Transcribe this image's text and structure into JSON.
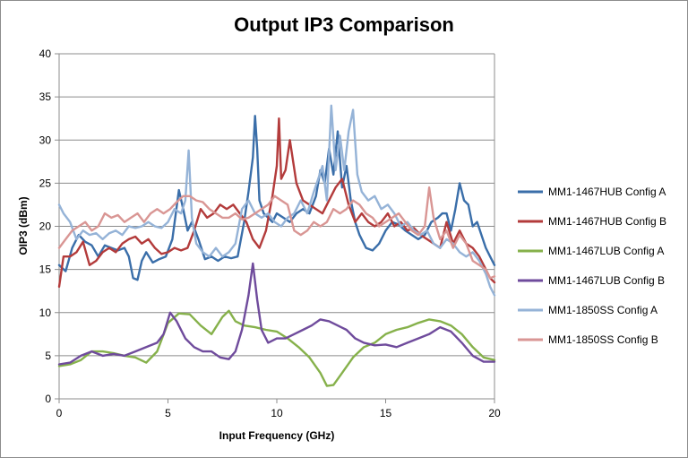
{
  "chart_data": {
    "type": "line",
    "title": "Output IP3 Comparison",
    "xlabel": "Input Frequency (GHz)",
    "ylabel": "OIP3  (dBm)",
    "xlim": [
      0,
      20
    ],
    "ylim": [
      0,
      40
    ],
    "xticks": [
      0,
      5,
      10,
      15,
      20
    ],
    "yticks": [
      0,
      5,
      10,
      15,
      20,
      25,
      30,
      35,
      40
    ],
    "grid": "horizontal",
    "legend": "right",
    "series": [
      {
        "name": "MM1-1467HUB Config A",
        "color": "#3a6ea9",
        "x": [
          0,
          0.3,
          0.6,
          0.9,
          1.2,
          1.5,
          1.8,
          2.1,
          2.4,
          2.7,
          3.0,
          3.2,
          3.4,
          3.6,
          3.8,
          4.0,
          4.3,
          4.6,
          4.9,
          5.2,
          5.5,
          5.7,
          5.9,
          6.1,
          6.4,
          6.7,
          7.0,
          7.3,
          7.6,
          7.9,
          8.2,
          8.5,
          8.7,
          8.9,
          9.0,
          9.1,
          9.2,
          9.4,
          9.6,
          9.8,
          10.0,
          10.3,
          10.6,
          10.9,
          11.2,
          11.5,
          11.8,
          12.0,
          12.2,
          12.4,
          12.6,
          12.8,
          13.0,
          13.2,
          13.4,
          13.6,
          13.8,
          14.1,
          14.4,
          14.7,
          15.0,
          15.3,
          15.6,
          15.9,
          16.2,
          16.5,
          16.8,
          17.1,
          17.4,
          17.6,
          17.8,
          18.0,
          18.2,
          18.4,
          18.6,
          18.8,
          19.0,
          19.2,
          19.4,
          19.6,
          19.8,
          20.0
        ],
        "values": [
          15.5,
          14.8,
          17.5,
          19.0,
          18.2,
          17.8,
          16.5,
          17.8,
          17.5,
          17.2,
          17.5,
          16.5,
          14.0,
          13.8,
          16.0,
          17.0,
          15.8,
          16.2,
          16.5,
          18.5,
          24.2,
          22.0,
          19.5,
          20.5,
          18.5,
          16.2,
          16.5,
          16.0,
          16.5,
          16.3,
          16.5,
          20.5,
          24.0,
          28.0,
          32.8,
          29.0,
          23.0,
          21.5,
          21.0,
          20.5,
          21.5,
          21.0,
          20.5,
          21.5,
          22.0,
          21.5,
          23.5,
          26.5,
          25.0,
          29.0,
          26.0,
          31.0,
          24.5,
          27.0,
          23.0,
          20.5,
          19.0,
          17.5,
          17.2,
          18.0,
          19.5,
          20.5,
          20.2,
          19.5,
          19.0,
          18.5,
          19.0,
          20.5,
          21.0,
          21.5,
          21.5,
          19.5,
          22.0,
          25.0,
          23.0,
          22.5,
          20.0,
          20.5,
          19.0,
          17.5,
          16.5,
          15.5
        ]
      },
      {
        "name": "MM1-1467HUB Config B",
        "color": "#b33b3b",
        "x": [
          0,
          0.2,
          0.5,
          0.8,
          1.1,
          1.4,
          1.7,
          2.0,
          2.3,
          2.6,
          2.9,
          3.2,
          3.5,
          3.8,
          4.1,
          4.4,
          4.7,
          5.0,
          5.3,
          5.6,
          5.9,
          6.2,
          6.5,
          6.8,
          7.1,
          7.4,
          7.7,
          8.0,
          8.3,
          8.6,
          8.9,
          9.2,
          9.5,
          9.8,
          10.0,
          10.1,
          10.2,
          10.4,
          10.6,
          10.9,
          11.2,
          11.5,
          11.8,
          12.1,
          12.4,
          12.7,
          13.0,
          13.3,
          13.6,
          13.9,
          14.2,
          14.5,
          14.8,
          15.1,
          15.4,
          15.7,
          16.0,
          16.3,
          16.6,
          16.9,
          17.2,
          17.5,
          17.8,
          18.1,
          18.4,
          18.7,
          19.0,
          19.3,
          19.6,
          19.8,
          20.0
        ],
        "values": [
          13.0,
          16.5,
          16.5,
          17.0,
          18.2,
          15.5,
          16.0,
          17.0,
          17.5,
          17.0,
          18.0,
          18.5,
          18.8,
          18.0,
          18.5,
          17.5,
          16.8,
          17.0,
          17.5,
          17.2,
          17.5,
          19.5,
          22.0,
          21.0,
          21.5,
          22.5,
          22.0,
          22.5,
          21.5,
          20.5,
          18.5,
          17.5,
          19.5,
          23.5,
          27.0,
          32.5,
          25.5,
          26.5,
          30.0,
          25.0,
          23.0,
          22.5,
          22.0,
          21.5,
          23.0,
          24.5,
          25.5,
          22.5,
          20.5,
          21.5,
          20.5,
          20.0,
          20.5,
          21.5,
          20.0,
          20.5,
          19.5,
          19.8,
          19.0,
          18.5,
          18.0,
          17.5,
          20.5,
          18.0,
          19.5,
          18.0,
          17.5,
          16.5,
          15.0,
          14.0,
          13.5
        ]
      },
      {
        "name": "MM1-1467LUB Config A",
        "color": "#86b14b",
        "x": [
          0,
          0.5,
          1.0,
          1.5,
          2.0,
          2.5,
          3.0,
          3.5,
          4.0,
          4.5,
          5.0,
          5.5,
          6.0,
          6.5,
          7.0,
          7.5,
          7.8,
          8.1,
          8.5,
          9.0,
          9.5,
          10.0,
          10.5,
          11.0,
          11.5,
          12.0,
          12.3,
          12.6,
          13.0,
          13.5,
          14.0,
          14.5,
          15.0,
          15.5,
          16.0,
          16.5,
          17.0,
          17.5,
          18.0,
          18.5,
          19.0,
          19.5,
          20.0
        ],
        "values": [
          3.8,
          4.0,
          4.5,
          5.5,
          5.5,
          5.3,
          5.0,
          4.8,
          4.2,
          5.5,
          8.8,
          9.9,
          9.8,
          8.5,
          7.5,
          9.5,
          10.2,
          9.0,
          8.5,
          8.3,
          8.0,
          7.8,
          7.0,
          6.0,
          4.8,
          3.0,
          1.5,
          1.6,
          3.0,
          4.8,
          6.0,
          6.5,
          7.5,
          8.0,
          8.3,
          8.8,
          9.2,
          9.0,
          8.5,
          7.5,
          6.0,
          4.8,
          4.5
        ]
      },
      {
        "name": "MM1-1467LUB Config B",
        "color": "#6f4b9c",
        "x": [
          0,
          0.5,
          1.0,
          1.5,
          2.0,
          2.5,
          3.0,
          3.5,
          4.0,
          4.5,
          4.8,
          5.1,
          5.4,
          5.8,
          6.2,
          6.6,
          7.0,
          7.4,
          7.8,
          8.1,
          8.4,
          8.7,
          8.9,
          9.1,
          9.3,
          9.6,
          10.0,
          10.4,
          10.8,
          11.2,
          11.6,
          12.0,
          12.4,
          12.8,
          13.2,
          13.6,
          14.0,
          14.5,
          15.0,
          15.5,
          16.0,
          16.5,
          17.0,
          17.5,
          18.0,
          18.5,
          19.0,
          19.5,
          20.0
        ],
        "values": [
          4.0,
          4.2,
          5.0,
          5.5,
          5.0,
          5.2,
          5.0,
          5.5,
          6.0,
          6.5,
          7.5,
          10.0,
          9.0,
          7.0,
          6.0,
          5.5,
          5.5,
          4.8,
          4.6,
          5.5,
          8.0,
          12.0,
          15.7,
          11.5,
          8.0,
          6.5,
          7.0,
          7.0,
          7.5,
          8.0,
          8.5,
          9.2,
          9.0,
          8.5,
          8.0,
          7.0,
          6.5,
          6.2,
          6.3,
          6.0,
          6.5,
          7.0,
          7.5,
          8.3,
          7.8,
          6.5,
          5.0,
          4.3,
          4.3
        ]
      },
      {
        "name": "MM1-1850SS Config A",
        "color": "#95b3d7",
        "x": [
          0,
          0.2,
          0.5,
          0.8,
          1.1,
          1.4,
          1.7,
          2.0,
          2.3,
          2.6,
          2.9,
          3.2,
          3.5,
          3.8,
          4.1,
          4.4,
          4.7,
          5.0,
          5.3,
          5.6,
          5.8,
          5.95,
          6.1,
          6.3,
          6.6,
          6.9,
          7.2,
          7.5,
          7.8,
          8.1,
          8.4,
          8.7,
          9.0,
          9.3,
          9.6,
          9.9,
          10.2,
          10.5,
          10.8,
          11.1,
          11.4,
          11.7,
          11.9,
          12.1,
          12.3,
          12.5,
          12.7,
          12.9,
          13.1,
          13.3,
          13.5,
          13.7,
          13.9,
          14.2,
          14.5,
          14.8,
          15.1,
          15.4,
          15.7,
          16.0,
          16.3,
          16.6,
          16.9,
          17.2,
          17.5,
          17.8,
          18.1,
          18.4,
          18.7,
          19.0,
          19.3,
          19.6,
          19.8,
          20.0
        ],
        "values": [
          22.5,
          21.5,
          20.5,
          18.5,
          19.5,
          19.0,
          19.2,
          18.5,
          19.2,
          19.5,
          19.0,
          20.0,
          19.8,
          20.0,
          20.5,
          20.0,
          19.8,
          20.5,
          22.0,
          21.5,
          23.0,
          28.8,
          21.0,
          18.0,
          17.0,
          16.5,
          17.5,
          16.5,
          17.0,
          18.0,
          22.0,
          23.0,
          21.5,
          21.0,
          21.5,
          20.5,
          20.0,
          21.0,
          21.5,
          23.0,
          21.5,
          24.0,
          25.5,
          27.0,
          23.0,
          34.0,
          26.5,
          30.5,
          26.5,
          31.0,
          33.5,
          26.0,
          24.0,
          23.0,
          23.5,
          22.0,
          22.5,
          21.5,
          20.0,
          20.5,
          19.5,
          19.0,
          19.5,
          18.0,
          17.5,
          18.5,
          18.0,
          17.0,
          16.5,
          17.0,
          16.0,
          14.5,
          13.0,
          12.0
        ]
      },
      {
        "name": "MM1-1850SS Config B",
        "color": "#d99694",
        "x": [
          0,
          0.3,
          0.6,
          0.9,
          1.2,
          1.5,
          1.8,
          2.1,
          2.4,
          2.7,
          3.0,
          3.3,
          3.6,
          3.9,
          4.2,
          4.5,
          4.8,
          5.1,
          5.4,
          5.7,
          6.0,
          6.3,
          6.6,
          6.9,
          7.2,
          7.5,
          7.8,
          8.1,
          8.4,
          8.7,
          9.0,
          9.3,
          9.6,
          9.9,
          10.2,
          10.5,
          10.8,
          11.1,
          11.4,
          11.7,
          12.0,
          12.3,
          12.6,
          12.9,
          13.2,
          13.5,
          13.8,
          14.1,
          14.4,
          14.7,
          15.0,
          15.3,
          15.6,
          15.9,
          16.2,
          16.5,
          16.8,
          17.0,
          17.2,
          17.5,
          17.8,
          18.1,
          18.4,
          18.7,
          19.0,
          19.3,
          19.6,
          19.8,
          20.0
        ],
        "values": [
          17.5,
          18.5,
          19.5,
          20.0,
          20.5,
          19.5,
          20.0,
          21.5,
          21.0,
          21.3,
          20.5,
          21.0,
          21.5,
          20.5,
          21.5,
          22.0,
          21.5,
          22.0,
          22.8,
          23.5,
          23.5,
          23.0,
          22.8,
          22.0,
          21.5,
          21.0,
          21.0,
          21.5,
          20.8,
          21.0,
          21.5,
          22.0,
          22.5,
          23.5,
          23.0,
          22.5,
          19.5,
          19.0,
          19.5,
          20.5,
          20.0,
          20.5,
          22.0,
          21.5,
          22.0,
          23.0,
          22.5,
          21.5,
          21.0,
          20.0,
          20.5,
          21.0,
          21.5,
          20.5,
          19.5,
          19.0,
          20.0,
          24.5,
          21.0,
          18.5,
          19.5,
          17.5,
          19.0,
          18.0,
          16.0,
          15.5,
          15.0,
          14.0,
          14.2
        ]
      }
    ]
  }
}
